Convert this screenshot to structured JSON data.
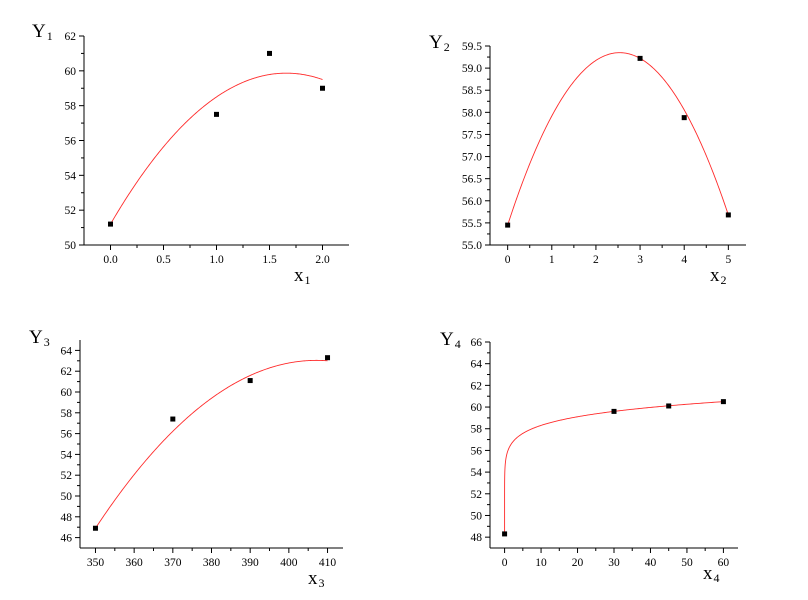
{
  "colors": {
    "curve": "#ff2b2b",
    "marker": "#000000",
    "axis": "#000000"
  },
  "chart_data": [
    {
      "id": "p1",
      "type": "scatter",
      "ylabel": {
        "letter": "Y",
        "sub": "1"
      },
      "xlabel": {
        "letter": "x",
        "sub": "1"
      },
      "xlim": [
        -0.25,
        2.25
      ],
      "ylim": [
        50,
        62
      ],
      "xticks": [
        0.0,
        0.5,
        1.0,
        1.5,
        2.0
      ],
      "xtick_labels": [
        "0.0",
        "0.5",
        "1.0",
        "1.5",
        "2.0"
      ],
      "yticks": [
        50,
        52,
        54,
        56,
        58,
        60,
        62
      ],
      "ytick_labels": [
        "50",
        "52",
        "54",
        "56",
        "58",
        "60",
        "62"
      ],
      "points": [
        {
          "x": 0,
          "y": 51.2
        },
        {
          "x": 1,
          "y": 57.5
        },
        {
          "x": 1.5,
          "y": 61.0
        },
        {
          "x": 2,
          "y": 59.0
        }
      ],
      "fit": {
        "kind": "quadratic",
        "x_range": [
          0,
          2
        ],
        "anchors": [
          {
            "x": 0,
            "y": 51.2
          },
          {
            "x": 1,
            "y": 58.5
          },
          {
            "x": 2,
            "y": 59.5
          }
        ]
      }
    },
    {
      "id": "p2",
      "type": "scatter",
      "ylabel": {
        "letter": "Y",
        "sub": "2"
      },
      "xlabel": {
        "letter": "x",
        "sub": "2"
      },
      "xlim": [
        -0.4,
        5.4
      ],
      "ylim": [
        55.0,
        59.5
      ],
      "xticks": [
        0,
        1,
        2,
        3,
        4,
        5
      ],
      "xtick_labels": [
        "0",
        "1",
        "2",
        "3",
        "4",
        "5"
      ],
      "yticks": [
        55.0,
        55.5,
        56.0,
        56.5,
        57.0,
        57.5,
        58.0,
        58.5,
        59.0,
        59.5
      ],
      "ytick_labels": [
        "55.0",
        "55.5",
        "56.0",
        "56.5",
        "57.0",
        "57.5",
        "58.0",
        "58.5",
        "59.0",
        "59.5"
      ],
      "points": [
        {
          "x": 0,
          "y": 55.45
        },
        {
          "x": 3,
          "y": 59.22
        },
        {
          "x": 4,
          "y": 57.88
        },
        {
          "x": 5,
          "y": 55.68
        }
      ],
      "fit": {
        "kind": "quadratic",
        "x_range": [
          0,
          5
        ],
        "anchors": [
          {
            "x": 0,
            "y": 55.45
          },
          {
            "x": 3,
            "y": 59.22
          },
          {
            "x": 5,
            "y": 55.68
          }
        ]
      }
    },
    {
      "id": "p3",
      "type": "scatter",
      "ylabel": {
        "letter": "Y",
        "sub": "3"
      },
      "xlabel": {
        "letter": "x",
        "sub": "3"
      },
      "xlim": [
        346,
        414
      ],
      "ylim": [
        45,
        65
      ],
      "xticks": [
        350,
        360,
        370,
        380,
        390,
        400,
        410
      ],
      "xtick_labels": [
        "350",
        "360",
        "370",
        "380",
        "390",
        "400",
        "410"
      ],
      "yticks": [
        46,
        48,
        50,
        52,
        54,
        56,
        58,
        60,
        62,
        64
      ],
      "ytick_labels": [
        "46",
        "48",
        "50",
        "52",
        "54",
        "56",
        "58",
        "60",
        "62",
        "64"
      ],
      "points": [
        {
          "x": 350,
          "y": 46.9
        },
        {
          "x": 370,
          "y": 57.4
        },
        {
          "x": 390,
          "y": 61.1
        },
        {
          "x": 410,
          "y": 63.3
        }
      ],
      "fit": {
        "kind": "quadratic",
        "x_range": [
          350,
          410
        ],
        "anchors": [
          {
            "x": 350,
            "y": 46.9
          },
          {
            "x": 380,
            "y": 59.4
          },
          {
            "x": 410,
            "y": 63.0
          }
        ]
      }
    },
    {
      "id": "p4",
      "type": "scatter",
      "ylabel": {
        "letter": "Y",
        "sub": "4"
      },
      "xlabel": {
        "letter": "x",
        "sub": "4"
      },
      "xlim": [
        -4,
        64
      ],
      "ylim": [
        47,
        66
      ],
      "xticks": [
        0,
        10,
        20,
        30,
        40,
        50,
        60
      ],
      "xtick_labels": [
        "0",
        "10",
        "20",
        "30",
        "40",
        "50",
        "60"
      ],
      "yticks": [
        48,
        50,
        52,
        54,
        56,
        58,
        60,
        62,
        64,
        66
      ],
      "ytick_labels": [
        "48",
        "50",
        "52",
        "54",
        "56",
        "58",
        "60",
        "62",
        "64",
        "66"
      ],
      "points": [
        {
          "x": 0,
          "y": 48.3
        },
        {
          "x": 30,
          "y": 59.6
        },
        {
          "x": 45,
          "y": 60.1
        },
        {
          "x": 60,
          "y": 60.5
        }
      ],
      "fit": {
        "kind": "power",
        "x_range": [
          0,
          60
        ],
        "y0": 48.3,
        "anchors": [
          {
            "x": 30,
            "y": 59.6
          },
          {
            "x": 60,
            "y": 60.5
          }
        ]
      }
    }
  ]
}
